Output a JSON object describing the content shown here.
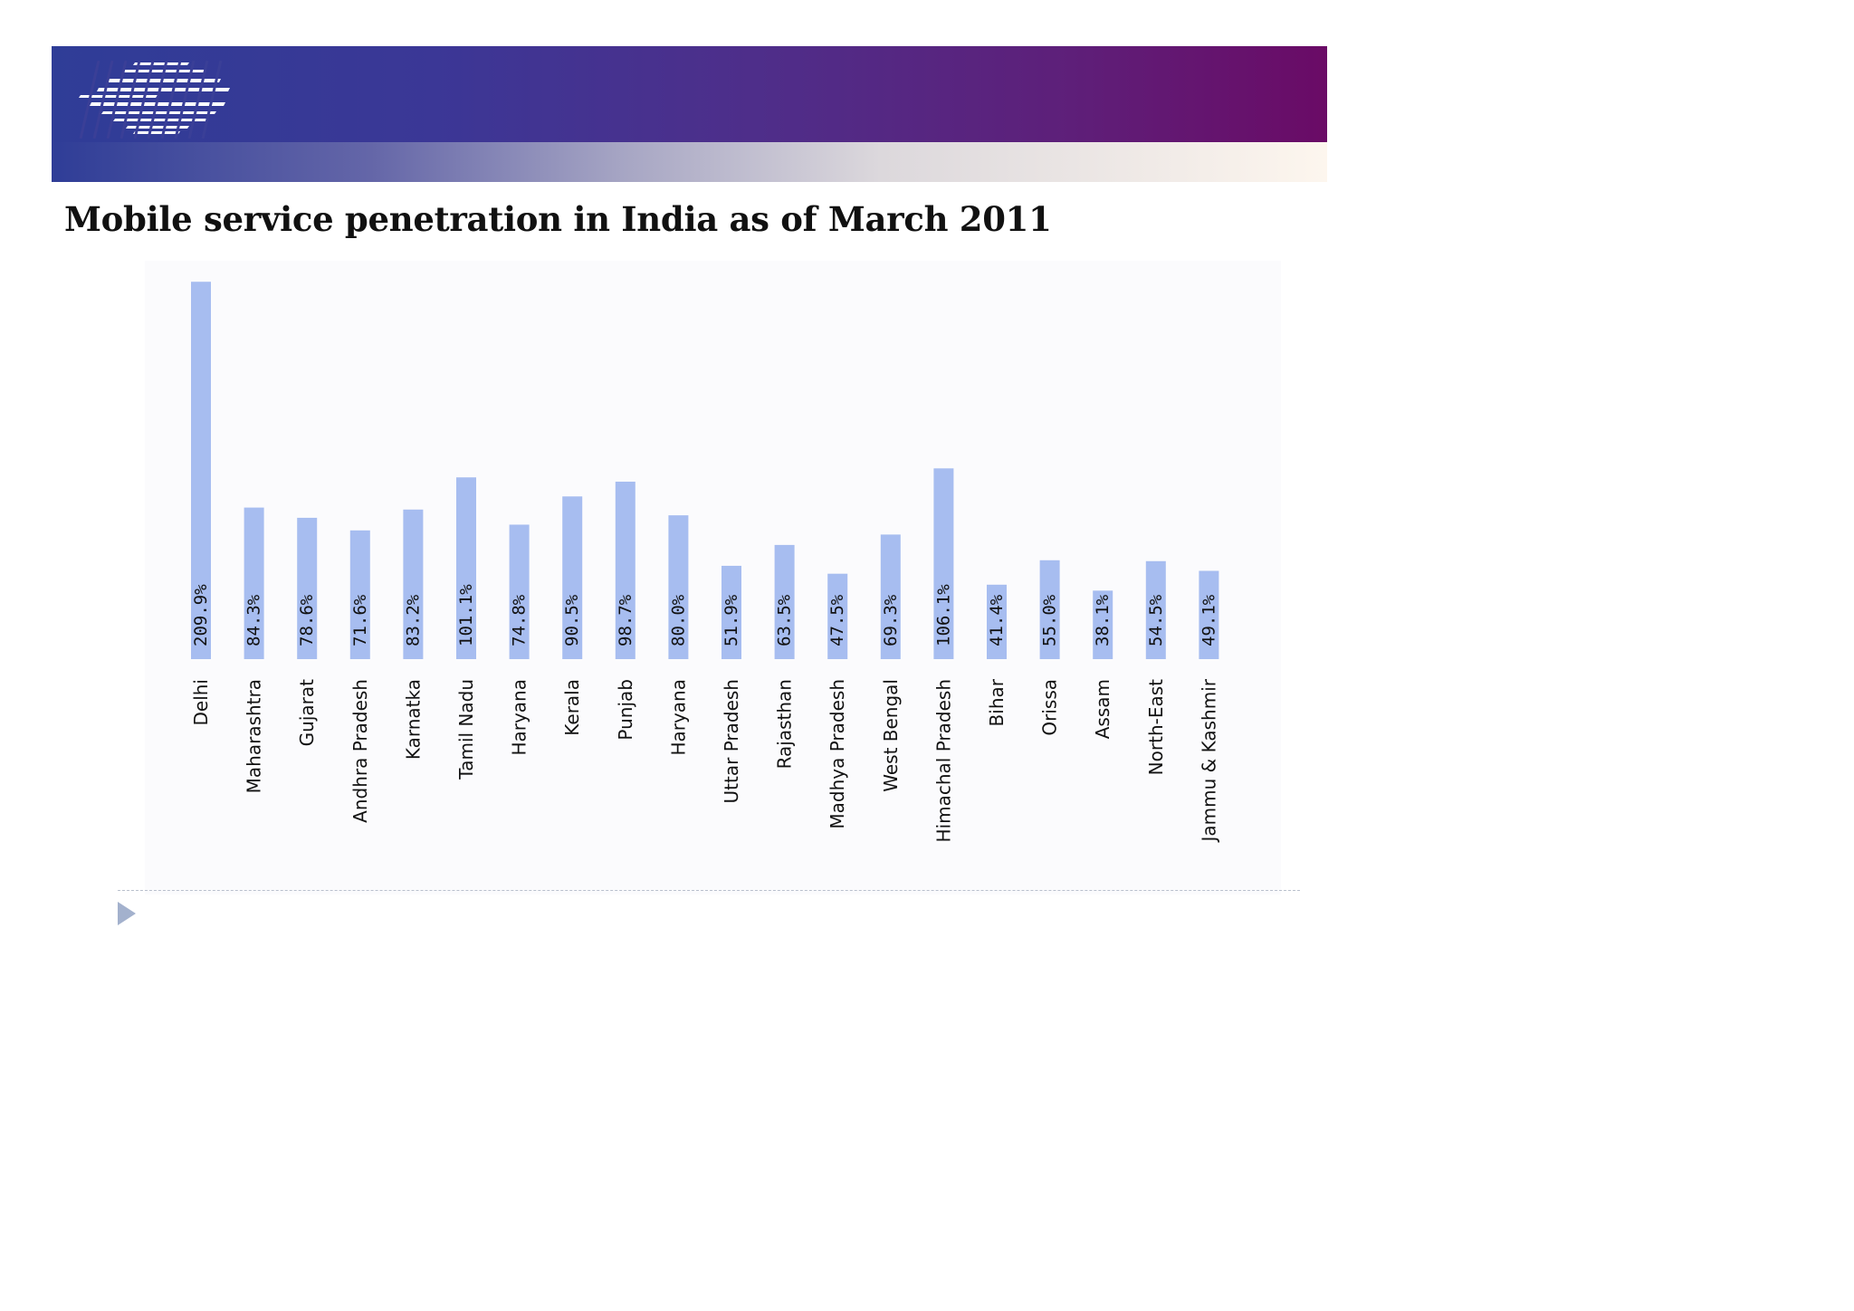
{
  "slide": {
    "title": "Mobile service penetration in India as of March 2011"
  },
  "colors": {
    "bar": "#a7bdf0",
    "banner_start": "#2f3d97",
    "banner_end": "#6a0b66",
    "bullet": "#a3b1cd"
  },
  "icons": {
    "logo": "striped-logo-icon",
    "bullet": "triangle-bullet-icon"
  },
  "chart_data": {
    "type": "bar",
    "title": "",
    "xlabel": "",
    "ylabel": "",
    "ylim": [
      0,
      210
    ],
    "grid": false,
    "legend": "none",
    "categories": [
      "Delhi",
      "Maharashtra",
      "Gujarat",
      "Andhra Pradesh",
      "Karnatka",
      "Tamil Nadu",
      "Haryana",
      "Kerala",
      "Punjab",
      "Haryana",
      "Uttar Pradesh",
      "Rajasthan",
      "Madhya Pradesh",
      "West Bengal",
      "Himachal Pradesh",
      "Bihar",
      "Orissa",
      "Assam",
      "North-East",
      "Jammu & Kashmir"
    ],
    "values": [
      209.9,
      84.3,
      78.6,
      71.6,
      83.2,
      101.1,
      74.8,
      90.5,
      98.7,
      80.0,
      51.9,
      63.5,
      47.5,
      69.3,
      106.1,
      41.4,
      55.0,
      38.1,
      54.5,
      49.1
    ],
    "value_labels": [
      "209.9%",
      "84.3%",
      "78.6%",
      "71.6%",
      "83.2%",
      "101.1%",
      "74.8%",
      "90.5%",
      "98.7%",
      "80.0%",
      "51.9%",
      "63.5%",
      "47.5%",
      "69.3%",
      "106.1%",
      "41.4%",
      "55.0%",
      "38.1%",
      "54.5%",
      "49.1%"
    ]
  }
}
